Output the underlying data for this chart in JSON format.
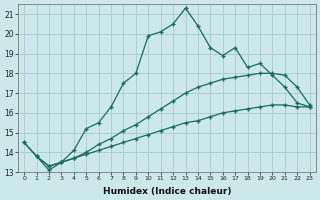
{
  "xlabel": "Humidex (Indice chaleur)",
  "ylabel": "",
  "bg_color": "#cce8ea",
  "grid_color": "#aacfd2",
  "line_color": "#1a6b60",
  "xlim": [
    -0.5,
    23.5
  ],
  "ylim": [
    13,
    21.5
  ],
  "yticks": [
    13,
    14,
    15,
    16,
    17,
    18,
    19,
    20,
    21
  ],
  "xticks": [
    0,
    1,
    2,
    3,
    4,
    5,
    6,
    7,
    8,
    9,
    10,
    11,
    12,
    13,
    14,
    15,
    16,
    17,
    18,
    19,
    20,
    21,
    22,
    23
  ],
  "xtick_labels": [
    "0",
    "1",
    "2",
    "3",
    "4",
    "5",
    "6",
    "7",
    "8",
    "9",
    "10",
    "11",
    "12",
    "13",
    "14",
    "15",
    "16",
    "17",
    "18",
    "19",
    "20",
    "21",
    "22",
    "23"
  ],
  "line1_x": [
    0,
    1,
    2,
    3,
    4,
    5,
    6,
    7,
    8,
    9,
    10,
    11,
    12,
    13,
    14,
    15,
    16,
    17,
    18,
    19,
    20,
    21,
    22,
    23
  ],
  "line1_y": [
    14.5,
    13.8,
    13.1,
    13.5,
    14.1,
    15.2,
    15.5,
    16.3,
    17.5,
    18.0,
    19.9,
    20.1,
    20.5,
    21.3,
    20.4,
    19.3,
    18.9,
    19.3,
    18.3,
    18.5,
    17.9,
    17.3,
    16.5,
    16.3
  ],
  "line2_x": [
    0,
    1,
    2,
    3,
    4,
    5,
    6,
    7,
    8,
    9,
    10,
    11,
    12,
    13,
    14,
    15,
    16,
    17,
    18,
    19,
    20,
    21,
    22,
    23
  ],
  "line2_y": [
    14.5,
    13.8,
    13.3,
    13.5,
    13.7,
    13.9,
    14.1,
    14.3,
    14.5,
    14.7,
    14.9,
    15.1,
    15.3,
    15.5,
    15.6,
    15.8,
    16.0,
    16.1,
    16.2,
    16.3,
    16.4,
    16.4,
    16.3,
    16.3
  ],
  "line3_x": [
    1,
    2,
    3,
    4,
    5,
    6,
    7,
    8,
    9,
    10,
    11,
    12,
    13,
    14,
    15,
    16,
    17,
    18,
    19,
    20,
    21,
    22,
    23
  ],
  "line3_y": [
    13.8,
    13.3,
    13.5,
    13.7,
    14.0,
    14.4,
    14.7,
    15.1,
    15.4,
    15.8,
    16.2,
    16.6,
    17.0,
    17.3,
    17.5,
    17.7,
    17.8,
    17.9,
    18.0,
    18.0,
    17.9,
    17.3,
    16.4
  ]
}
